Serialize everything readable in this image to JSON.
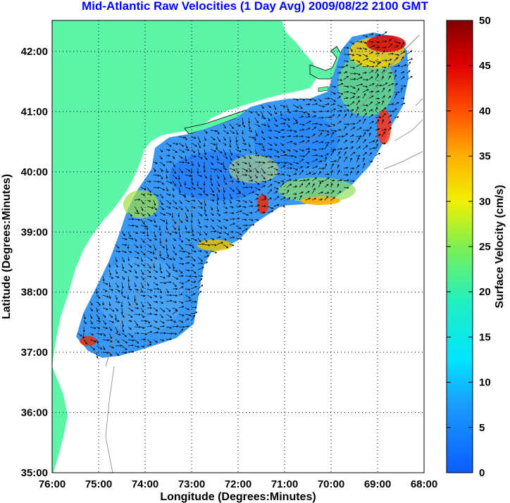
{
  "title": "Mid-Atlantic Raw Velocities (1 Day Avg) 2009/08/22 2100 GMT",
  "xlabel": "Longitude (Degrees:Minutes)",
  "ylabel": "Latitude (Degrees:Minutes)",
  "colorbar_label": "Surface Velocity (cm/s)",
  "x_ticks": [
    "76:00",
    "75:00",
    "74:00",
    "73:00",
    "72:00",
    "71:00",
    "70:00",
    "69:00",
    "68:00"
  ],
  "y_ticks": [
    "42:00",
    "41:00",
    "40:00",
    "39:00",
    "38:00",
    "37:00",
    "36:00",
    "35:00"
  ],
  "colorbar_ticks": [
    "50",
    "45",
    "40",
    "35",
    "30",
    "25",
    "20",
    "15",
    "10",
    "5",
    "0"
  ],
  "colors": {
    "land": "#5cf5a8",
    "title": "#0000ff",
    "low_speed": "#1a73ff",
    "mid_speed": "#19e6e6",
    "high_speed": "#8b0000"
  },
  "chart_data": {
    "type": "heatmap",
    "title": "Mid-Atlantic Raw Velocities (1 Day Avg) 2009/08/22 2100 GMT",
    "xlabel": "Longitude (Degrees:Minutes)",
    "ylabel": "Latitude (Degrees:Minutes)",
    "xlim": [
      "76:00",
      "68:00"
    ],
    "ylim": [
      "35:00",
      "42:30"
    ],
    "colorbar": {
      "label": "Surface Velocity (cm/s)",
      "range": [
        0,
        50
      ],
      "colormap": "jet"
    },
    "grid": "dotted"
  }
}
